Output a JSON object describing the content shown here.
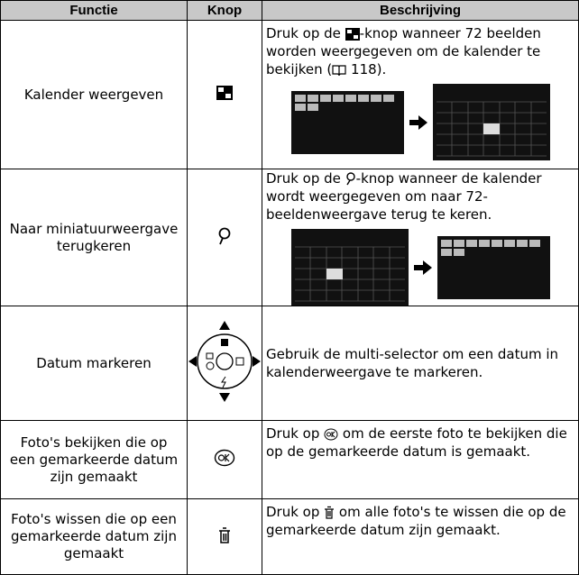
{
  "header": {
    "columns": [
      "Functie",
      "Knop",
      "Beschrijving"
    ]
  },
  "rows": [
    {
      "function": "Kalender weergeven",
      "description": [
        "Druk op de ",
        "-knop wanneer 72 beelden worden weergegeven om de kalender te bekijken (",
        " 118)."
      ]
    },
    {
      "function": "Naar miniatuurweergave terugkeren",
      "description": [
        "Druk op de ",
        "-knop wanneer de kalender wordt weergegeven om naar 72-beeldenweergave terug te keren."
      ]
    },
    {
      "function": "Datum markeren",
      "description": [
        "Gebruik de multi-selector om een datum in kalenderweergave te markeren."
      ]
    },
    {
      "function": "Foto's bekijken die op een gemarkeerde datum zijn gemaakt",
      "description": [
        "Druk op ",
        " om de eerste foto te bekijken die op de gemarkeerde datum is gemaakt."
      ]
    },
    {
      "function": "Foto's wissen die op een gemarkeerde datum zijn gemaakt",
      "description": [
        "Druk op ",
        " om alle foto's te wissen die op de gemarkeerde datum zijn gemaakt."
      ]
    }
  ]
}
